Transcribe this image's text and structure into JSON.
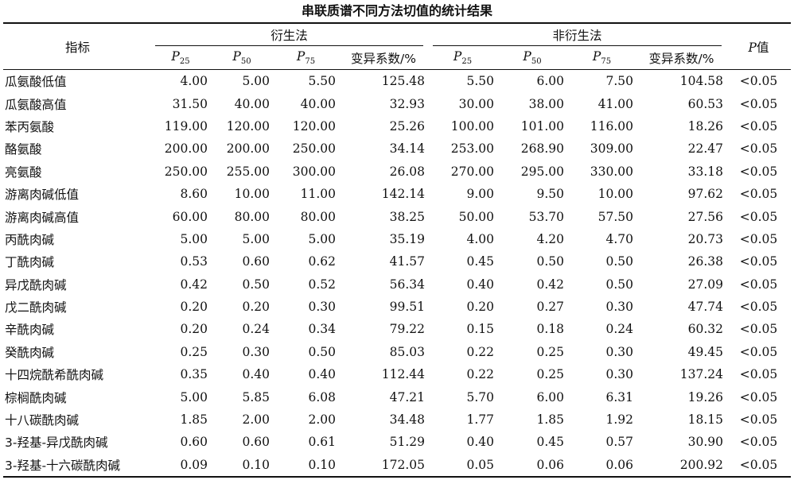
{
  "title": "串联质谱不同方法切值的统计结果",
  "header": {
    "indicator": "指标",
    "group1": "衍生法",
    "group2": "非衍生法",
    "pvalue_italic": "P",
    "pvalue_suffix": "值",
    "sub_italic": "P",
    "p25_sub": "25",
    "p50_sub": "50",
    "p75_sub": "75",
    "cv": "变异系数/%"
  },
  "rows": [
    {
      "name": "瓜氨酸低值",
      "d": [
        "4.00",
        "5.00",
        "5.50",
        "125.48"
      ],
      "n": [
        "5.50",
        "6.00",
        "7.50",
        "104.58"
      ],
      "p": "<0.05"
    },
    {
      "name": "瓜氨酸高值",
      "d": [
        "31.50",
        "40.00",
        "40.00",
        "32.93"
      ],
      "n": [
        "30.00",
        "38.00",
        "41.00",
        "60.53"
      ],
      "p": "<0.05"
    },
    {
      "name": "苯丙氨酸",
      "d": [
        "119.00",
        "120.00",
        "120.00",
        "25.26"
      ],
      "n": [
        "100.00",
        "101.00",
        "116.00",
        "18.26"
      ],
      "p": "<0.05"
    },
    {
      "name": "酪氨酸",
      "d": [
        "200.00",
        "200.00",
        "250.00",
        "34.14"
      ],
      "n": [
        "253.00",
        "268.90",
        "309.00",
        "22.47"
      ],
      "p": "<0.05"
    },
    {
      "name": "亮氨酸",
      "d": [
        "250.00",
        "255.00",
        "300.00",
        "26.08"
      ],
      "n": [
        "270.00",
        "295.00",
        "330.00",
        "33.18"
      ],
      "p": "<0.05"
    },
    {
      "name": "游离肉碱低值",
      "d": [
        "8.60",
        "10.00",
        "11.00",
        "142.14"
      ],
      "n": [
        "9.00",
        "9.50",
        "10.00",
        "97.62"
      ],
      "p": "<0.05"
    },
    {
      "name": "游离肉碱高值",
      "d": [
        "60.00",
        "80.00",
        "80.00",
        "38.25"
      ],
      "n": [
        "50.00",
        "53.70",
        "57.50",
        "27.56"
      ],
      "p": "<0.05"
    },
    {
      "name": "丙酰肉碱",
      "d": [
        "5.00",
        "5.00",
        "5.00",
        "35.19"
      ],
      "n": [
        "4.00",
        "4.20",
        "4.70",
        "20.73"
      ],
      "p": "<0.05"
    },
    {
      "name": "丁酰肉碱",
      "d": [
        "0.53",
        "0.60",
        "0.62",
        "41.57"
      ],
      "n": [
        "0.45",
        "0.50",
        "0.50",
        "26.38"
      ],
      "p": "<0.05"
    },
    {
      "name": "异戊酰肉碱",
      "d": [
        "0.42",
        "0.50",
        "0.52",
        "56.34"
      ],
      "n": [
        "0.40",
        "0.42",
        "0.50",
        "27.09"
      ],
      "p": "<0.05"
    },
    {
      "name": "戊二酰肉碱",
      "d": [
        "0.20",
        "0.20",
        "0.30",
        "99.51"
      ],
      "n": [
        "0.20",
        "0.27",
        "0.30",
        "47.74"
      ],
      "p": "<0.05"
    },
    {
      "name": "辛酰肉碱",
      "d": [
        "0.20",
        "0.24",
        "0.34",
        "79.22"
      ],
      "n": [
        "0.15",
        "0.18",
        "0.24",
        "60.32"
      ],
      "p": "<0.05"
    },
    {
      "name": "癸酰肉碱",
      "d": [
        "0.25",
        "0.30",
        "0.50",
        "85.03"
      ],
      "n": [
        "0.22",
        "0.25",
        "0.30",
        "49.45"
      ],
      "p": "<0.05"
    },
    {
      "name": "十四烷酰希酰肉碱",
      "d": [
        "0.35",
        "0.40",
        "0.40",
        "112.44"
      ],
      "n": [
        "0.22",
        "0.25",
        "0.30",
        "137.24"
      ],
      "p": "<0.05"
    },
    {
      "name": "棕榈酰肉碱",
      "d": [
        "5.00",
        "5.85",
        "6.08",
        "47.21"
      ],
      "n": [
        "5.70",
        "6.00",
        "6.31",
        "19.26"
      ],
      "p": "<0.05"
    },
    {
      "name": "十八碳酰肉碱",
      "d": [
        "1.85",
        "2.00",
        "2.00",
        "34.48"
      ],
      "n": [
        "1.77",
        "1.85",
        "1.92",
        "18.15"
      ],
      "p": "<0.05"
    },
    {
      "name": "3-羟基-异戊酰肉碱",
      "d": [
        "0.60",
        "0.60",
        "0.61",
        "51.29"
      ],
      "n": [
        "0.40",
        "0.45",
        "0.57",
        "30.90"
      ],
      "p": "<0.05"
    },
    {
      "name": "3-羟基-十六碳酰肉碱",
      "d": [
        "0.09",
        "0.10",
        "0.10",
        "172.05"
      ],
      "n": [
        "0.05",
        "0.06",
        "0.06",
        "200.92"
      ],
      "p": "<0.05"
    }
  ]
}
